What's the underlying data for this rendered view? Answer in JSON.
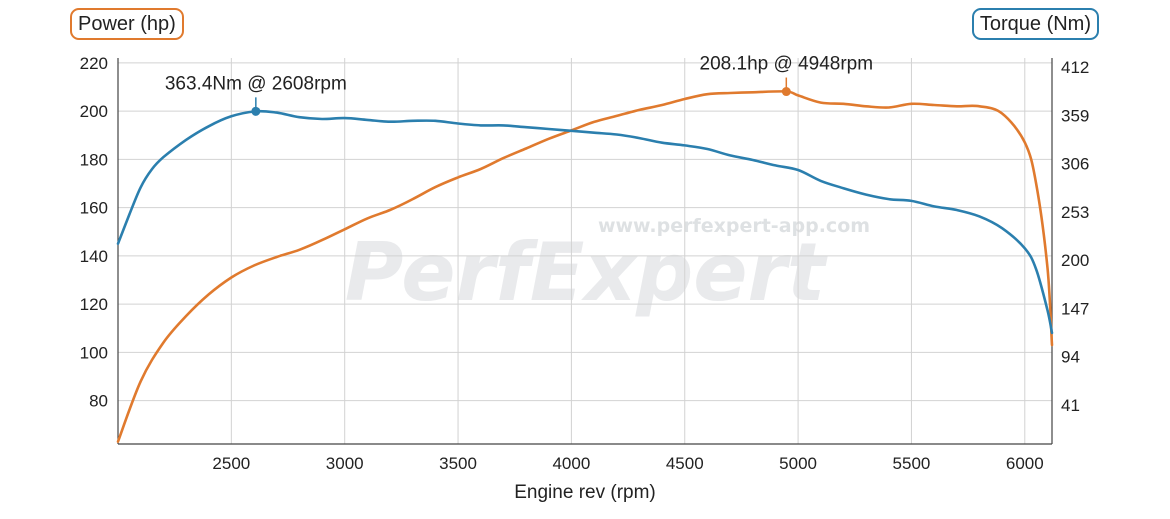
{
  "chart_data": {
    "type": "line",
    "xlabel": "Engine rev (rpm)",
    "y_left_label": "Power (hp)",
    "y_right_label": "Torque (Nm)",
    "xlim": [
      2000,
      6120
    ],
    "ylim_left": [
      62,
      222
    ],
    "ylim_right": [
      -2,
      422
    ],
    "x_ticks": [
      2500,
      3000,
      3500,
      4000,
      4500,
      5000,
      5500,
      6000
    ],
    "y_left_ticks": [
      80,
      100,
      120,
      140,
      160,
      180,
      200,
      220
    ],
    "y_right_ticks": [
      41,
      94,
      147,
      200,
      253,
      306,
      359,
      412
    ],
    "grid": true,
    "watermark": {
      "main": "PerfExpert",
      "url": "www.perfexpert-app.com"
    },
    "series": [
      {
        "name": "Power (hp)",
        "axis": "left",
        "color": "#e07a2e",
        "x": [
          2000,
          2100,
          2200,
          2300,
          2400,
          2500,
          2600,
          2700,
          2800,
          2900,
          3000,
          3100,
          3200,
          3300,
          3400,
          3500,
          3600,
          3700,
          3800,
          3900,
          4000,
          4100,
          4200,
          4300,
          4400,
          4500,
          4600,
          4700,
          4800,
          4948,
          5000,
          5100,
          5200,
          5300,
          5400,
          5500,
          5600,
          5700,
          5800,
          5900,
          6000,
          6050,
          6100,
          6120
        ],
        "values": [
          63,
          88,
          104,
          115,
          124,
          131,
          136,
          139.5,
          142.5,
          146.5,
          151,
          155.5,
          159,
          163.5,
          168.5,
          172.5,
          176,
          180.5,
          184.5,
          188.5,
          192,
          195.5,
          198,
          200.5,
          202.5,
          205,
          207,
          207.5,
          207.8,
          208.1,
          206.5,
          203.5,
          203,
          202,
          201.5,
          203,
          202.5,
          202,
          202,
          199,
          187,
          170,
          135,
          103
        ]
      },
      {
        "name": "Torque (Nm)",
        "axis": "right",
        "color": "#2b7fae",
        "x": [
          2000,
          2050,
          2100,
          2150,
          2200,
          2300,
          2400,
          2500,
          2608,
          2700,
          2800,
          2900,
          3000,
          3100,
          3200,
          3300,
          3400,
          3500,
          3600,
          3700,
          3800,
          3900,
          4000,
          4100,
          4200,
          4300,
          4400,
          4500,
          4600,
          4700,
          4800,
          4900,
          5000,
          5100,
          5200,
          5300,
          5400,
          5500,
          5600,
          5700,
          5800,
          5900,
          6000,
          6050,
          6100,
          6120
        ],
        "values": [
          218,
          250,
          280,
          300,
          313,
          332,
          347,
          358,
          363.4,
          362,
          357,
          355,
          356,
          354,
          352,
          353,
          353,
          350,
          348,
          348,
          346,
          344,
          342,
          340,
          338,
          334,
          329,
          326,
          322,
          315,
          310,
          304,
          299,
          287,
          279,
          272,
          267,
          265,
          259,
          255,
          248,
          235,
          213,
          190,
          145,
          120
        ]
      }
    ],
    "annotations": [
      {
        "series": "Torque (Nm)",
        "x": 2608,
        "y": 363.4,
        "text": "363.4Nm @ 2608rpm"
      },
      {
        "series": "Power (hp)",
        "x": 4948,
        "y": 208.1,
        "text": "208.1hp @ 4948rpm"
      }
    ]
  }
}
